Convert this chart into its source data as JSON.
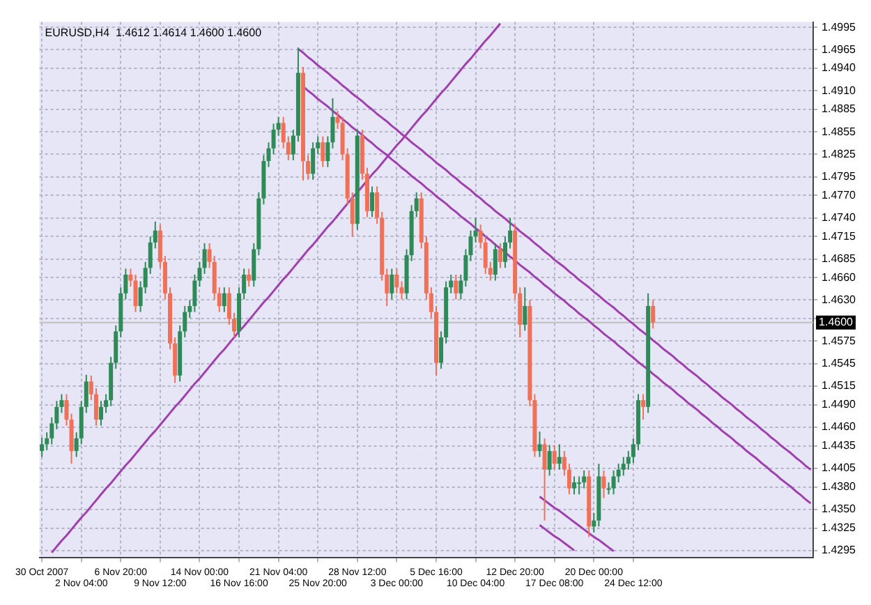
{
  "chart_data": {
    "type": "candlestick",
    "title": "EURUSD,H4  1.4612 1.4614 1.4600 1.4600",
    "categories": [
      "30 Oct 2007",
      null,
      null,
      null,
      null,
      null,
      null,
      null,
      "2 Nov 04:00",
      null,
      null,
      null,
      null,
      null,
      null,
      null,
      "6 Nov 20:00",
      null,
      null,
      null,
      null,
      null,
      null,
      null,
      "9 Nov 12:00",
      null,
      null,
      null,
      null,
      null,
      null,
      null,
      "14 Nov 00:00",
      null,
      null,
      null,
      null,
      null,
      null,
      null,
      "16 Nov 16:00",
      null,
      null,
      null,
      null,
      null,
      null,
      null,
      "21 Nov 04:00",
      null,
      null,
      null,
      null,
      null,
      null,
      null,
      "25 Nov 20:00",
      null,
      null,
      null,
      null,
      null,
      null,
      null,
      "28 Nov 12:00",
      null,
      null,
      null,
      null,
      null,
      null,
      null,
      "3 Dec 00:00",
      null,
      null,
      null,
      null,
      null,
      null,
      null,
      "5 Dec 16:00",
      null,
      null,
      null,
      null,
      null,
      null,
      null,
      "10 Dec 04:00",
      null,
      null,
      null,
      null,
      null,
      null,
      null,
      "12 Dec 20:00",
      null,
      null,
      null,
      null,
      null,
      null,
      null,
      "17 Dec 08:00",
      null,
      null,
      null,
      null,
      null,
      null,
      null,
      "20 Dec 00:00",
      null,
      null,
      null,
      null,
      null,
      null,
      null,
      "24 Dec 12:00",
      null,
      null,
      null,
      null,
      null,
      null,
      null,
      null,
      null,
      null,
      null,
      null,
      null,
      null,
      null,
      null,
      null,
      null,
      null,
      null,
      null,
      null,
      null,
      null,
      null,
      null,
      null,
      null,
      null,
      null,
      null,
      null,
      null,
      null,
      null,
      null
    ],
    "ohlc": [
      [
        1.4428,
        1.4446,
        1.442,
        1.4437
      ],
      [
        1.4437,
        1.4453,
        1.4429,
        1.4445
      ],
      [
        1.4445,
        1.4473,
        1.4437,
        1.4465
      ],
      [
        1.4465,
        1.4495,
        1.4457,
        1.4487
      ],
      [
        1.4487,
        1.4504,
        1.4479,
        1.4496
      ],
      [
        1.4496,
        1.4504,
        1.4462,
        1.447
      ],
      [
        1.447,
        1.4478,
        1.4411,
        1.4428
      ],
      [
        1.4428,
        1.4453,
        1.442,
        1.4445
      ],
      [
        1.4445,
        1.4495,
        1.4437,
        1.4487
      ],
      [
        1.4487,
        1.453,
        1.4479,
        1.4521
      ],
      [
        1.4521,
        1.4529,
        1.4496,
        1.4504
      ],
      [
        1.4504,
        1.4512,
        1.4462,
        1.447
      ],
      [
        1.447,
        1.4495,
        1.4462,
        1.4487
      ],
      [
        1.4487,
        1.4504,
        1.4479,
        1.4496
      ],
      [
        1.4496,
        1.4554,
        1.4488,
        1.4546
      ],
      [
        1.4546,
        1.4596,
        1.4538,
        1.4588
      ],
      [
        1.4588,
        1.4647,
        1.458,
        1.4639
      ],
      [
        1.4639,
        1.4672,
        1.4631,
        1.4664
      ],
      [
        1.4664,
        1.4672,
        1.4648,
        1.4656
      ],
      [
        1.4656,
        1.4664,
        1.4614,
        1.4622
      ],
      [
        1.4622,
        1.4655,
        1.4614,
        1.4647
      ],
      [
        1.4647,
        1.4681,
        1.4639,
        1.4673
      ],
      [
        1.4673,
        1.4715,
        1.4665,
        1.4707
      ],
      [
        1.4707,
        1.4735,
        1.4699,
        1.4723
      ],
      [
        1.4723,
        1.4731,
        1.4673,
        1.4681
      ],
      [
        1.4681,
        1.4689,
        1.4631,
        1.4639
      ],
      [
        1.4639,
        1.4647,
        1.4564,
        1.4572
      ],
      [
        1.4572,
        1.458,
        1.4519,
        1.4529
      ],
      [
        1.4529,
        1.4596,
        1.4521,
        1.4588
      ],
      [
        1.4588,
        1.4622,
        1.458,
        1.4614
      ],
      [
        1.4614,
        1.463,
        1.4606,
        1.4622
      ],
      [
        1.4622,
        1.4664,
        1.4614,
        1.4656
      ],
      [
        1.4656,
        1.4681,
        1.4648,
        1.4673
      ],
      [
        1.4673,
        1.4706,
        1.4665,
        1.4698
      ],
      [
        1.4698,
        1.4706,
        1.4673,
        1.4681
      ],
      [
        1.4681,
        1.4689,
        1.4631,
        1.4639
      ],
      [
        1.4639,
        1.4647,
        1.4614,
        1.4622
      ],
      [
        1.4622,
        1.4647,
        1.4614,
        1.4639
      ],
      [
        1.4639,
        1.4647,
        1.4597,
        1.4605
      ],
      [
        1.4605,
        1.4613,
        1.458,
        1.4588
      ],
      [
        1.4588,
        1.4647,
        1.458,
        1.4639
      ],
      [
        1.4639,
        1.4672,
        1.4631,
        1.4664
      ],
      [
        1.4664,
        1.4672,
        1.4648,
        1.4656
      ],
      [
        1.4656,
        1.4706,
        1.4648,
        1.4698
      ],
      [
        1.4698,
        1.4774,
        1.469,
        1.4766
      ],
      [
        1.4766,
        1.4824,
        1.4758,
        1.4816
      ],
      [
        1.4816,
        1.4841,
        1.4808,
        1.4833
      ],
      [
        1.4833,
        1.4866,
        1.4825,
        1.4858
      ],
      [
        1.4858,
        1.4875,
        1.485,
        1.4867
      ],
      [
        1.4867,
        1.4875,
        1.4833,
        1.4841
      ],
      [
        1.4841,
        1.4849,
        1.4817,
        1.4825
      ],
      [
        1.4825,
        1.4858,
        1.4817,
        1.485
      ],
      [
        1.485,
        1.4968,
        1.4842,
        1.4934
      ],
      [
        1.4934,
        1.4942,
        1.479,
        1.4816
      ],
      [
        1.4816,
        1.4824,
        1.4791,
        1.4799
      ],
      [
        1.4799,
        1.4841,
        1.4791,
        1.4833
      ],
      [
        1.4833,
        1.4849,
        1.4825,
        1.4841
      ],
      [
        1.4841,
        1.4849,
        1.4808,
        1.4816
      ],
      [
        1.4816,
        1.4849,
        1.4808,
        1.4841
      ],
      [
        1.4841,
        1.49,
        1.4833,
        1.4875
      ],
      [
        1.4875,
        1.4883,
        1.4859,
        1.4867
      ],
      [
        1.4867,
        1.4875,
        1.4817,
        1.4825
      ],
      [
        1.4825,
        1.4833,
        1.4758,
        1.4766
      ],
      [
        1.4766,
        1.4774,
        1.4715,
        1.4732
      ],
      [
        1.4732,
        1.4858,
        1.4724,
        1.485
      ],
      [
        1.485,
        1.4858,
        1.4791,
        1.4799
      ],
      [
        1.4799,
        1.4807,
        1.4741,
        1.4749
      ],
      [
        1.4749,
        1.4782,
        1.4741,
        1.4774
      ],
      [
        1.4774,
        1.4782,
        1.4732,
        1.474
      ],
      [
        1.474,
        1.4748,
        1.4656,
        1.4664
      ],
      [
        1.4664,
        1.4672,
        1.4622,
        1.4639
      ],
      [
        1.4639,
        1.4672,
        1.4631,
        1.4664
      ],
      [
        1.4664,
        1.4672,
        1.4639,
        1.4647
      ],
      [
        1.4647,
        1.4655,
        1.4631,
        1.4639
      ],
      [
        1.4639,
        1.4698,
        1.4631,
        1.469
      ],
      [
        1.469,
        1.4757,
        1.4682,
        1.4749
      ],
      [
        1.4749,
        1.4774,
        1.4741,
        1.4766
      ],
      [
        1.4766,
        1.4774,
        1.4699,
        1.4707
      ],
      [
        1.4707,
        1.4715,
        1.4631,
        1.4639
      ],
      [
        1.4639,
        1.4647,
        1.4606,
        1.4614
      ],
      [
        1.4614,
        1.4622,
        1.4529,
        1.4546
      ],
      [
        1.4546,
        1.4588,
        1.4538,
        1.458
      ],
      [
        1.458,
        1.4655,
        1.4572,
        1.4647
      ],
      [
        1.4647,
        1.4664,
        1.4639,
        1.4656
      ],
      [
        1.4656,
        1.4664,
        1.4631,
        1.4639
      ],
      [
        1.4639,
        1.4664,
        1.4631,
        1.4656
      ],
      [
        1.4656,
        1.4698,
        1.4648,
        1.469
      ],
      [
        1.469,
        1.4723,
        1.4682,
        1.4715
      ],
      [
        1.4715,
        1.474,
        1.4707,
        1.4723
      ],
      [
        1.4723,
        1.4731,
        1.4699,
        1.4707
      ],
      [
        1.4707,
        1.4715,
        1.4665,
        1.4673
      ],
      [
        1.4673,
        1.4681,
        1.4656,
        1.4664
      ],
      [
        1.4664,
        1.4706,
        1.4656,
        1.4698
      ],
      [
        1.4698,
        1.4706,
        1.4673,
        1.4681
      ],
      [
        1.4681,
        1.4715,
        1.4673,
        1.4707
      ],
      [
        1.4707,
        1.474,
        1.4699,
        1.4723
      ],
      [
        1.4723,
        1.4731,
        1.4631,
        1.4639
      ],
      [
        1.4639,
        1.4647,
        1.458,
        1.4597
      ],
      [
        1.4597,
        1.4647,
        1.4589,
        1.4622
      ],
      [
        1.4622,
        1.463,
        1.4488,
        1.4496
      ],
      [
        1.4496,
        1.4504,
        1.442,
        1.4428
      ],
      [
        1.4428,
        1.4454,
        1.442,
        1.4437
      ],
      [
        1.4437,
        1.4445,
        1.4335,
        1.4403
      ],
      [
        1.4403,
        1.4436,
        1.4395,
        1.4428
      ],
      [
        1.4428,
        1.4436,
        1.4403,
        1.4411
      ],
      [
        1.4411,
        1.4437,
        1.4403,
        1.442
      ],
      [
        1.442,
        1.4428,
        1.4395,
        1.4403
      ],
      [
        1.4403,
        1.4411,
        1.437,
        1.4378
      ],
      [
        1.4378,
        1.4394,
        1.437,
        1.4386
      ],
      [
        1.4386,
        1.4394,
        1.437,
        1.4386
      ],
      [
        1.4386,
        1.4402,
        1.4378,
        1.4394
      ],
      [
        1.4394,
        1.4402,
        1.4313,
        1.4327
      ],
      [
        1.4327,
        1.4345,
        1.4319,
        1.4335
      ],
      [
        1.4335,
        1.4411,
        1.4327,
        1.4394
      ],
      [
        1.4394,
        1.4402,
        1.4365,
        1.4378
      ],
      [
        1.4378,
        1.4386,
        1.437,
        1.4378
      ],
      [
        1.4378,
        1.4402,
        1.437,
        1.4394
      ],
      [
        1.4394,
        1.4411,
        1.4386,
        1.4403
      ],
      [
        1.4403,
        1.442,
        1.4395,
        1.4411
      ],
      [
        1.4411,
        1.4428,
        1.4403,
        1.442
      ],
      [
        1.442,
        1.4445,
        1.4412,
        1.4437
      ],
      [
        1.4437,
        1.4504,
        1.4429,
        1.4496
      ],
      [
        1.4496,
        1.4504,
        1.447,
        1.4487
      ],
      [
        1.4487,
        1.4639,
        1.4479,
        1.4622
      ],
      [
        1.4622,
        1.463,
        1.4592,
        1.46
      ],
      null,
      null,
      null,
      null,
      null,
      null,
      null,
      null,
      null,
      null,
      null,
      null,
      null,
      null,
      null,
      null,
      null,
      null,
      null,
      null,
      null,
      null,
      null,
      null,
      null,
      null,
      null,
      null,
      null,
      null,
      null,
      null
    ],
    "series": [
      {
        "type": "line",
        "color": "#a040b0",
        "values": [
          null,
          null,
          1.4292,
          1.43,
          1.4308,
          1.4315,
          1.4323,
          1.4331,
          1.4339,
          1.4346,
          1.4354,
          1.4362,
          1.437,
          1.4378,
          1.4385,
          1.4393,
          1.4401,
          1.4409,
          1.4416,
          1.4424,
          1.4432,
          1.444,
          1.4448,
          1.4455,
          1.4463,
          1.4471,
          1.4479,
          1.4487,
          1.4494,
          1.4502,
          1.451,
          1.4518,
          1.4525,
          1.4533,
          1.4541,
          1.4549,
          1.4557,
          1.4564,
          1.4572,
          1.458,
          1.4588,
          1.4595,
          1.4603,
          1.4611,
          1.4619,
          1.4627,
          1.4634,
          1.4642,
          1.465,
          1.4658,
          1.4665,
          1.4673,
          1.4681,
          1.4689,
          1.4697,
          1.4704,
          1.4712,
          1.472,
          1.4728,
          1.4735,
          1.4743,
          1.4751,
          1.4759,
          1.4767,
          1.4774,
          1.4782,
          1.479,
          1.4798,
          1.4805,
          1.4813,
          1.4821,
          1.4829,
          1.4837,
          1.4844,
          1.4852,
          1.486,
          1.4868,
          1.4876,
          1.4883,
          1.4891,
          1.4899,
          1.4907,
          1.4914,
          1.4922,
          1.493,
          1.4938,
          1.4946,
          1.4953,
          1.4961,
          1.4969,
          1.4977,
          1.4984,
          1.4992,
          1.5,
          null,
          null,
          null,
          null,
          null,
          null,
          null,
          null,
          null,
          null,
          null,
          null,
          null,
          null,
          null,
          null,
          null,
          null,
          null,
          null,
          null,
          null,
          null,
          null,
          null,
          null,
          null,
          null,
          null,
          null,
          null,
          null,
          null,
          null,
          null,
          null,
          null,
          null,
          null,
          null,
          null,
          null,
          null,
          null,
          null,
          null,
          null,
          null,
          null,
          null,
          null,
          null,
          null,
          null,
          null,
          null,
          null,
          null,
          null,
          null,
          null,
          null,
          null
        ]
      },
      {
        "type": "line",
        "color": "#a040b0",
        "values": [
          null,
          null,
          null,
          null,
          null,
          null,
          null,
          null,
          null,
          null,
          null,
          null,
          null,
          null,
          null,
          null,
          null,
          null,
          null,
          null,
          null,
          null,
          null,
          null,
          null,
          null,
          null,
          null,
          null,
          null,
          null,
          null,
          null,
          null,
          null,
          null,
          null,
          null,
          null,
          null,
          null,
          null,
          null,
          null,
          null,
          null,
          null,
          null,
          null,
          null,
          null,
          null,
          1.4966,
          1.4961,
          1.4955,
          1.495,
          1.4944,
          1.4939,
          1.4934,
          1.4928,
          1.4923,
          1.4917,
          1.4912,
          1.4906,
          1.4901,
          1.4896,
          1.489,
          1.4885,
          1.4879,
          1.4874,
          1.4869,
          1.4863,
          1.4858,
          1.4852,
          1.4847,
          1.4841,
          1.4836,
          1.4831,
          1.4825,
          1.482,
          1.4814,
          1.4809,
          1.4804,
          1.4798,
          1.4793,
          1.4787,
          1.4782,
          1.4777,
          1.4771,
          1.4766,
          1.476,
          1.4755,
          1.4749,
          1.4744,
          1.4739,
          1.4733,
          1.4728,
          1.4722,
          1.4717,
          1.4712,
          1.4706,
          1.4701,
          1.4695,
          1.469,
          1.4684,
          1.4679,
          1.4674,
          1.4668,
          1.4663,
          1.4657,
          1.4652,
          1.4647,
          1.4641,
          1.4636,
          1.463,
          1.4625,
          1.462,
          1.4614,
          1.4609,
          1.4603,
          1.4598,
          1.4592,
          1.4587,
          1.4582,
          1.4576,
          1.4571,
          1.4565,
          1.456,
          1.4555,
          1.4549,
          1.4544,
          1.4538,
          1.4533,
          1.4528,
          1.4522,
          1.4517,
          1.4511,
          1.4506,
          1.45,
          1.4495,
          1.449,
          1.4484,
          1.4479,
          1.4473,
          1.4468,
          1.4463,
          1.4457,
          1.4452,
          1.4446,
          1.4441,
          1.4435,
          1.443,
          1.4425,
          1.4419,
          1.4414,
          1.4408,
          1.4403
        ]
      },
      {
        "type": "line",
        "color": "#a040b0",
        "values": [
          null,
          null,
          null,
          null,
          null,
          null,
          null,
          null,
          null,
          null,
          null,
          null,
          null,
          null,
          null,
          null,
          null,
          null,
          null,
          null,
          null,
          null,
          null,
          null,
          null,
          null,
          null,
          null,
          null,
          null,
          null,
          null,
          null,
          null,
          null,
          null,
          null,
          null,
          null,
          null,
          null,
          null,
          null,
          null,
          null,
          null,
          null,
          null,
          null,
          null,
          null,
          null,
          null,
          1.4916,
          1.491,
          1.4905,
          1.4899,
          1.4894,
          1.4889,
          1.4883,
          1.4878,
          1.4872,
          1.4867,
          1.4861,
          1.4856,
          1.4851,
          1.4845,
          1.484,
          1.4834,
          1.4829,
          1.4824,
          1.4818,
          1.4813,
          1.4807,
          1.4802,
          1.4796,
          1.4791,
          1.4786,
          1.478,
          1.4775,
          1.4769,
          1.4764,
          1.4759,
          1.4753,
          1.4748,
          1.4742,
          1.4737,
          1.4732,
          1.4726,
          1.4721,
          1.4715,
          1.471,
          1.4704,
          1.4699,
          1.4694,
          1.4688,
          1.4683,
          1.4677,
          1.4672,
          1.4667,
          1.4661,
          1.4656,
          1.465,
          1.4645,
          1.4639,
          1.4634,
          1.4629,
          1.4623,
          1.4618,
          1.4612,
          1.4607,
          1.4602,
          1.4596,
          1.4591,
          1.4585,
          1.458,
          1.4575,
          1.4569,
          1.4564,
          1.4558,
          1.4553,
          1.4547,
          1.4542,
          1.4537,
          1.4531,
          1.4526,
          1.452,
          1.4515,
          1.451,
          1.4504,
          1.4499,
          1.4493,
          1.4488,
          1.4483,
          1.4477,
          1.4472,
          1.4466,
          1.4461,
          1.4455,
          1.445,
          1.4445,
          1.4439,
          1.4434,
          1.4428,
          1.4423,
          1.4418,
          1.4412,
          1.4407,
          1.4401,
          1.4396,
          1.439,
          1.4385,
          1.438,
          1.4374,
          1.4369,
          1.4363,
          1.4358
        ]
      },
      {
        "type": "line",
        "color": "#a040b0",
        "values": [
          null,
          null,
          null,
          null,
          null,
          null,
          null,
          null,
          null,
          null,
          null,
          null,
          null,
          null,
          null,
          null,
          null,
          null,
          null,
          null,
          null,
          null,
          null,
          null,
          null,
          null,
          null,
          null,
          null,
          null,
          null,
          null,
          null,
          null,
          null,
          null,
          null,
          null,
          null,
          null,
          null,
          null,
          null,
          null,
          null,
          null,
          null,
          null,
          null,
          null,
          null,
          null,
          null,
          null,
          null,
          null,
          null,
          null,
          null,
          null,
          null,
          null,
          null,
          null,
          null,
          null,
          null,
          null,
          null,
          null,
          null,
          null,
          null,
          null,
          null,
          null,
          null,
          null,
          null,
          null,
          null,
          null,
          null,
          null,
          null,
          null,
          null,
          null,
          null,
          null,
          null,
          null,
          null,
          null,
          null,
          null,
          null,
          null,
          null,
          null,
          null,
          1.4367,
          1.4362,
          1.4357,
          1.4352,
          1.4348,
          1.4343,
          1.4338,
          1.4333,
          1.4328,
          1.4323,
          1.4318,
          1.4313,
          1.4309,
          1.4304,
          1.4299,
          1.4294,
          null,
          null,
          null,
          null,
          null,
          null,
          null,
          null,
          null,
          null,
          null,
          null,
          null,
          null,
          null,
          null,
          null,
          null,
          null,
          null,
          null,
          null,
          null,
          null,
          null,
          null,
          null,
          null,
          null,
          null,
          null,
          null,
          null,
          null,
          null,
          null,
          null,
          null,
          null,
          null
        ]
      },
      {
        "type": "line",
        "color": "#a040b0",
        "values": [
          null,
          null,
          null,
          null,
          null,
          null,
          null,
          null,
          null,
          null,
          null,
          null,
          null,
          null,
          null,
          null,
          null,
          null,
          null,
          null,
          null,
          null,
          null,
          null,
          null,
          null,
          null,
          null,
          null,
          null,
          null,
          null,
          null,
          null,
          null,
          null,
          null,
          null,
          null,
          null,
          null,
          null,
          null,
          null,
          null,
          null,
          null,
          null,
          null,
          null,
          null,
          null,
          null,
          null,
          null,
          null,
          null,
          null,
          null,
          null,
          null,
          null,
          null,
          null,
          null,
          null,
          null,
          null,
          null,
          null,
          null,
          null,
          null,
          null,
          null,
          null,
          null,
          null,
          null,
          null,
          null,
          null,
          null,
          null,
          null,
          null,
          null,
          null,
          null,
          null,
          null,
          null,
          null,
          null,
          null,
          null,
          null,
          null,
          null,
          null,
          null,
          1.4329,
          1.4324,
          1.4319,
          1.4314,
          1.431,
          1.4305,
          1.43,
          1.4295,
          null,
          null,
          null,
          null,
          null,
          null,
          null,
          null,
          null,
          null,
          null,
          null,
          null,
          null,
          null,
          null,
          null,
          null,
          null,
          null,
          null,
          null,
          null,
          null,
          null,
          null,
          null,
          null,
          null,
          null,
          null,
          null,
          null,
          null,
          null,
          null,
          null,
          null,
          null,
          null,
          null,
          null,
          null,
          null,
          null,
          null,
          null,
          null
        ]
      }
    ],
    "ylim": [
      1.4285,
      1.5002
    ],
    "yticks": [
      1.4995,
      1.4965,
      {
        "value": 1.494,
        "label": "1.4940"
      },
      {
        "value": 1.491,
        "label": "1.4910"
      },
      1.4885,
      1.4855,
      1.4825,
      1.4795,
      {
        "value": 1.477,
        "label": "1.4770"
      },
      {
        "value": 1.474,
        "label": "1.4740"
      },
      1.4715,
      1.4685,
      {
        "value": 1.466,
        "label": "1.4660"
      },
      {
        "value": 1.463,
        "label": "1.4630"
      },
      {
        "value": 1.4605,
        "label": null
      },
      1.4575,
      1.4545,
      1.4515,
      {
        "value": 1.449,
        "label": "1.4490"
      },
      {
        "value": 1.446,
        "label": "1.4460"
      },
      1.4435,
      1.4405,
      {
        "value": 1.438,
        "label": "1.4380"
      },
      {
        "value": 1.435,
        "label": "1.4350"
      },
      1.4325,
      1.4295
    ],
    "ref_lines": [
      {
        "axis": "y",
        "value": 1.46,
        "label": "1.4600",
        "color": "#c0c0c0"
      }
    ],
    "grid": true
  }
}
